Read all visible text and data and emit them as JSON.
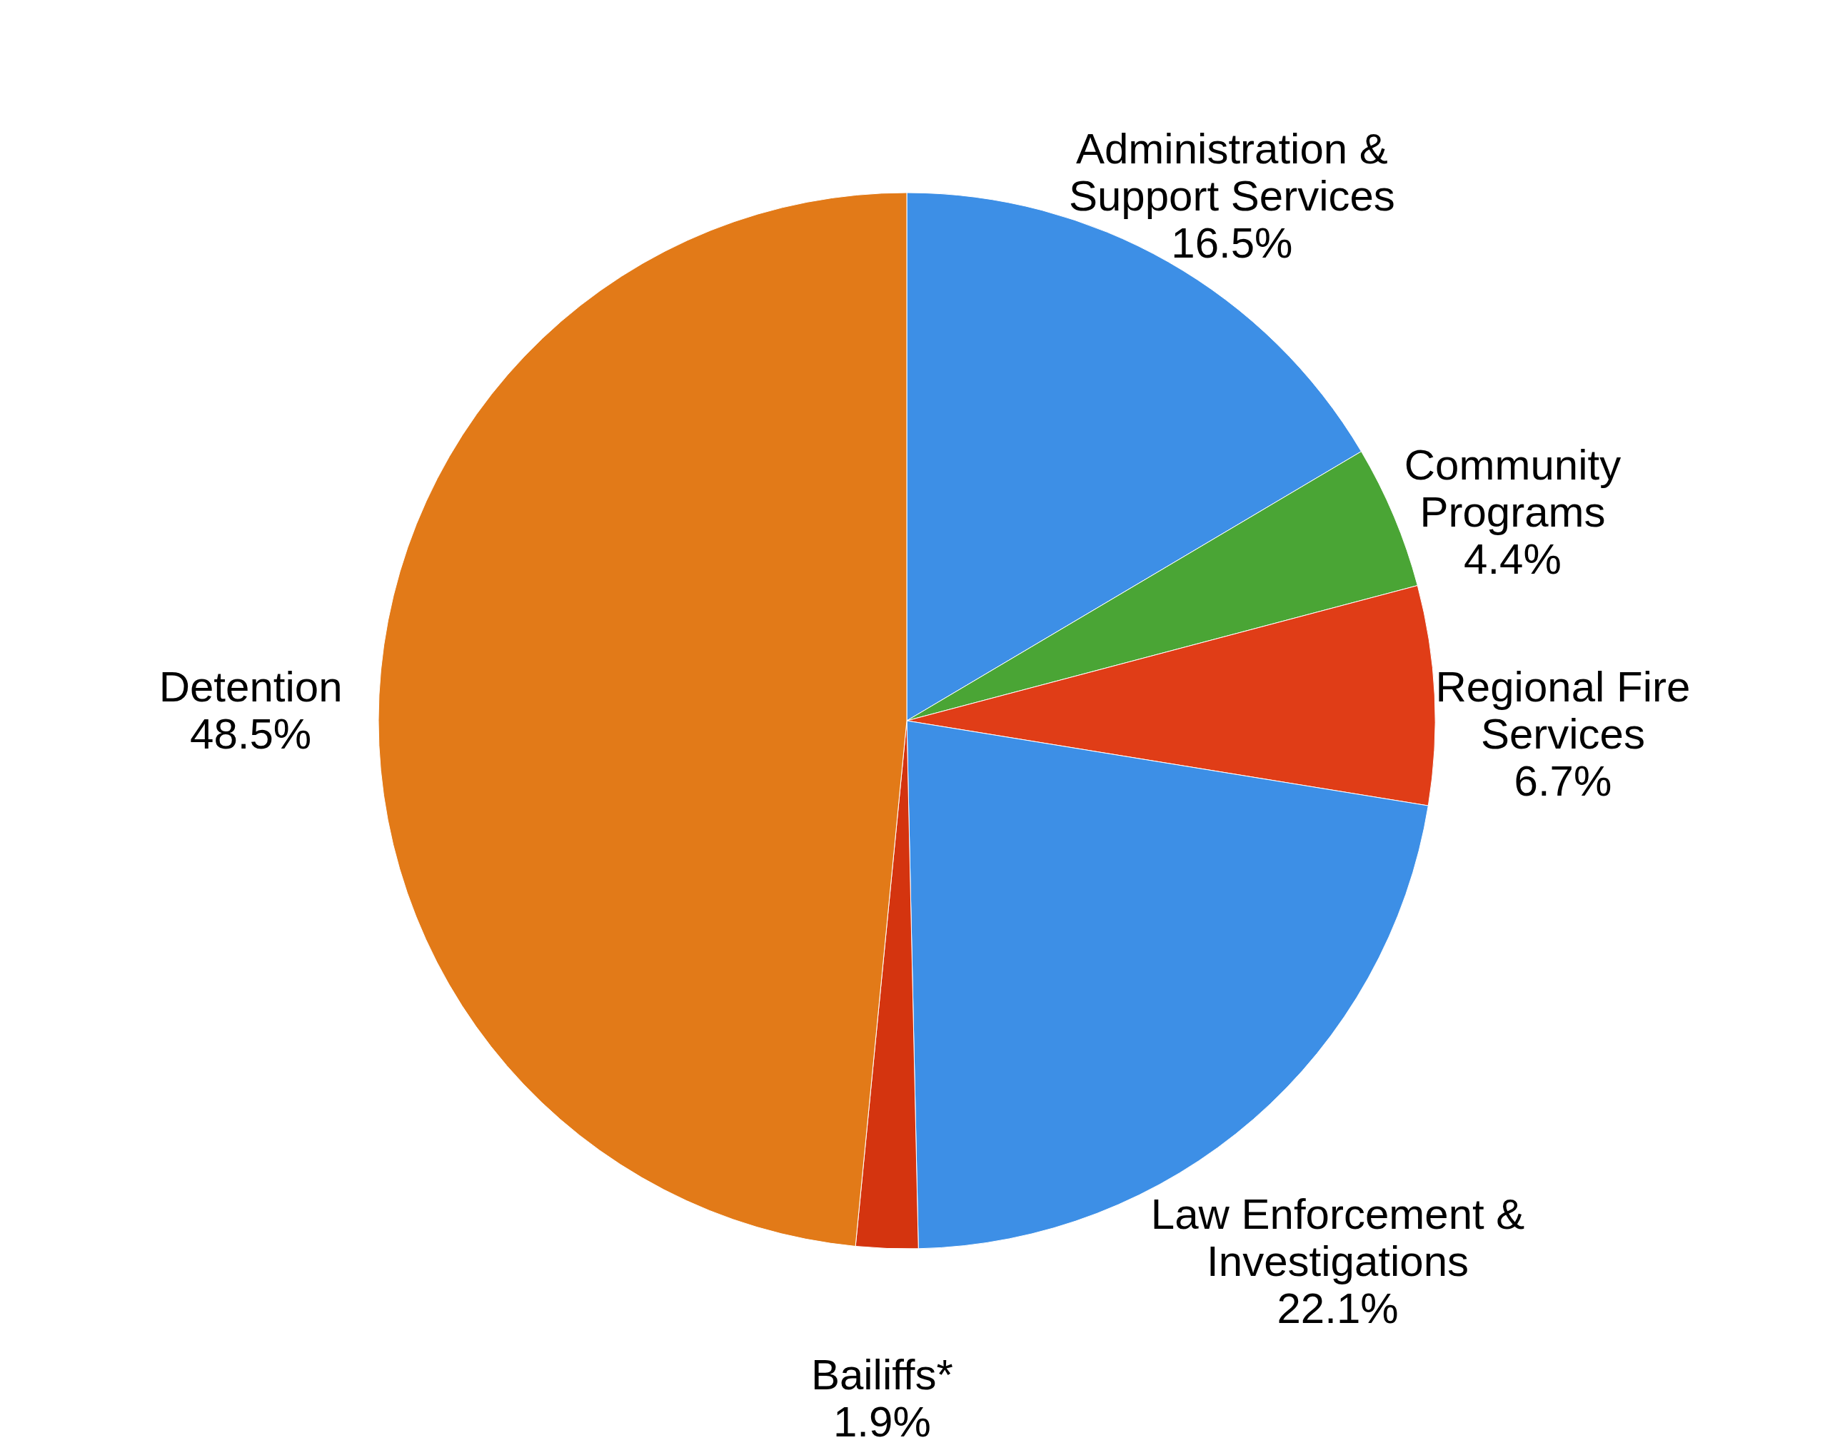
{
  "chart_data": {
    "type": "pie",
    "categories": [
      "Administration & Support Services",
      "Community Programs",
      "Regional Fire Services",
      "Law Enforcement & Investigations",
      "Bailiffs*",
      "Detention"
    ],
    "values": [
      16.5,
      4.4,
      6.7,
      22.1,
      1.9,
      48.5
    ],
    "value_labels": [
      "16.5%",
      "4.4%",
      "6.7%",
      "22.1%",
      "1.9%",
      "48.5%"
    ],
    "colors": [
      "#3d8fe6",
      "#4aa535",
      "#e03d17",
      "#3d8fe6",
      "#d4340f",
      "#e27a18"
    ],
    "legend": false
  }
}
